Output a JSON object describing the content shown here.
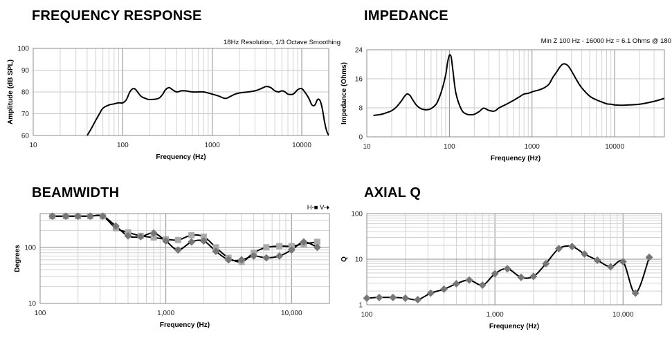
{
  "chart_data": [
    {
      "id": "fr",
      "type": "line",
      "title": "FREQUENCY RESPONSE",
      "annotation": "18Hz Resolution, 1/3 Octave Smoothing",
      "xlabel": "Frequency (Hz)",
      "ylabel": "Amplitude (dB SPL)",
      "xscale": "log",
      "xlim": [
        10,
        20000
      ],
      "ylim": [
        60,
        100
      ],
      "xticks": [
        10,
        100,
        1000,
        10000
      ],
      "xtick_labels": [
        "10",
        "100",
        "1000",
        "10000"
      ],
      "yticks": [
        60,
        70,
        80,
        90,
        100
      ],
      "ytick_labels": [
        "60",
        "70",
        "80",
        "90",
        "100"
      ],
      "grid": true,
      "series": [
        {
          "x": [
            40,
            45,
            50,
            55,
            60,
            70,
            80,
            90,
            100,
            110,
            120,
            130,
            140,
            160,
            180,
            200,
            250,
            280,
            300,
            330,
            360,
            400,
            450,
            500,
            600,
            700,
            800,
            900,
            1000,
            1100,
            1200,
            1400,
            1600,
            1800,
            2000,
            2500,
            3000,
            3500,
            4000,
            4500,
            5000,
            5500,
            6000,
            6500,
            7000,
            8000,
            9000,
            10000,
            11000,
            12000,
            13000,
            14000,
            15000,
            16000,
            17000,
            18000,
            19000,
            20000
          ],
          "values": [
            60,
            63.5,
            67,
            70,
            72.5,
            74,
            74.5,
            75,
            75,
            76.5,
            80,
            81.5,
            81,
            78,
            77,
            76.5,
            77,
            79,
            81,
            82,
            81,
            80,
            80.5,
            80.5,
            80,
            80,
            80,
            79.5,
            79,
            78.5,
            78,
            77,
            78,
            79,
            79.5,
            80,
            80.5,
            81.5,
            82.5,
            82,
            80.5,
            80,
            80.5,
            80,
            79,
            79,
            81,
            81.5,
            79.5,
            77,
            74,
            74,
            76.5,
            76,
            72,
            66,
            62,
            60
          ]
        }
      ]
    },
    {
      "id": "imp",
      "type": "line",
      "title": "IMPEDANCE",
      "annotation": "Min Z  100 Hz - 16000 Hz = 6.1 Ohms @ 180",
      "xlabel": "Frequency (Hz)",
      "ylabel": "Impedance (Ohms)",
      "xscale": "log",
      "xlim": [
        10,
        40000
      ],
      "ylim": [
        0,
        24
      ],
      "xticks": [
        10,
        100,
        1000,
        10000
      ],
      "xtick_labels": [
        "10",
        "100",
        "1000",
        "10000"
      ],
      "yticks": [
        0,
        8,
        16,
        24
      ],
      "ytick_labels": [
        "0",
        "8",
        "16",
        "24"
      ],
      "grid": true,
      "series": [
        {
          "x": [
            12,
            15,
            18,
            20,
            23,
            26,
            30,
            33,
            36,
            40,
            45,
            50,
            55,
            60,
            70,
            80,
            90,
            95,
            100,
            105,
            110,
            120,
            140,
            160,
            180,
            200,
            230,
            260,
            300,
            350,
            400,
            500,
            600,
            700,
            800,
            900,
            1000,
            1200,
            1400,
            1600,
            1800,
            2000,
            2200,
            2400,
            2700,
            3000,
            3500,
            4000,
            5000,
            6000,
            7000,
            8000,
            9000,
            10000,
            12000,
            15000,
            20000,
            30000,
            40000
          ],
          "values": [
            5.9,
            6.2,
            6.8,
            7.2,
            8.3,
            9.8,
            11.7,
            11.5,
            10.2,
            8.7,
            7.8,
            7.5,
            7.5,
            7.8,
            9.2,
            12.5,
            17,
            20.5,
            22.5,
            22,
            18.5,
            12,
            7.5,
            6.3,
            6.1,
            6.2,
            7,
            7.9,
            7.3,
            7.1,
            8,
            9.1,
            10.1,
            11,
            11.8,
            12,
            12.4,
            12.9,
            13.5,
            14.5,
            16.5,
            18,
            19.4,
            20.1,
            19.7,
            18.2,
            15.5,
            13.5,
            11.2,
            10.2,
            9.6,
            9.1,
            9,
            8.8,
            8.7,
            8.8,
            9,
            9.8,
            10.6
          ]
        }
      ]
    },
    {
      "id": "beam",
      "type": "line",
      "title": "BEAMWIDTH",
      "legend": "H-■  V-♦",
      "legend_position": "top-right",
      "xlabel": "Frequency (Hz)",
      "ylabel": "Degrees",
      "xscale": "log",
      "yscale": "log",
      "xlim": [
        100,
        20000
      ],
      "ylim": [
        10,
        400
      ],
      "xticks": [
        100,
        1000,
        10000
      ],
      "xtick_labels": [
        "100",
        "1,000",
        "10,000"
      ],
      "yticks": [
        10,
        100
      ],
      "ytick_labels": [
        "10",
        "100"
      ],
      "grid": true,
      "x": [
        125,
        160,
        200,
        250,
        315,
        400,
        500,
        630,
        800,
        1000,
        1250,
        1600,
        2000,
        2500,
        3150,
        4000,
        5000,
        6300,
        8000,
        10000,
        12500,
        16000
      ],
      "series": [
        {
          "name": "H",
          "marker": "square",
          "color": "#aaaaaa",
          "values": [
            360,
            360,
            360,
            360,
            360,
            220,
            185,
            160,
            150,
            140,
            135,
            165,
            155,
            100,
            65,
            55,
            80,
            100,
            105,
            105,
            115,
            125
          ]
        },
        {
          "name": "V",
          "marker": "diamond",
          "color": "#777777",
          "values": [
            360,
            360,
            360,
            360,
            360,
            240,
            160,
            155,
            180,
            130,
            90,
            125,
            130,
            85,
            60,
            60,
            70,
            65,
            70,
            90,
            125,
            100
          ]
        }
      ]
    },
    {
      "id": "q",
      "type": "line",
      "title": "AXIAL Q",
      "xlabel": "Frequency (Hz)",
      "ylabel": "Q",
      "xscale": "log",
      "yscale": "log",
      "xlim": [
        100,
        20000
      ],
      "ylim": [
        1,
        100
      ],
      "xticks": [
        100,
        1000,
        10000
      ],
      "xtick_labels": [
        "100",
        "1,000",
        "10,000"
      ],
      "yticks": [
        1,
        10,
        100
      ],
      "ytick_labels": [
        "1",
        "10",
        "100"
      ],
      "grid": true,
      "series": [
        {
          "marker": "diamond",
          "color": "#777777",
          "x": [
            100,
            125,
            160,
            200,
            250,
            315,
            400,
            500,
            630,
            800,
            1000,
            1250,
            1600,
            2000,
            2500,
            3150,
            4000,
            5000,
            6300,
            8000,
            10000,
            12500,
            16000
          ],
          "values": [
            1.4,
            1.45,
            1.45,
            1.4,
            1.3,
            1.8,
            2.2,
            2.9,
            3.5,
            2.7,
            4.8,
            6.2,
            4,
            4.2,
            8,
            17,
            19,
            13,
            9.5,
            6.8,
            8.8,
            1.8,
            11
          ]
        }
      ]
    }
  ]
}
